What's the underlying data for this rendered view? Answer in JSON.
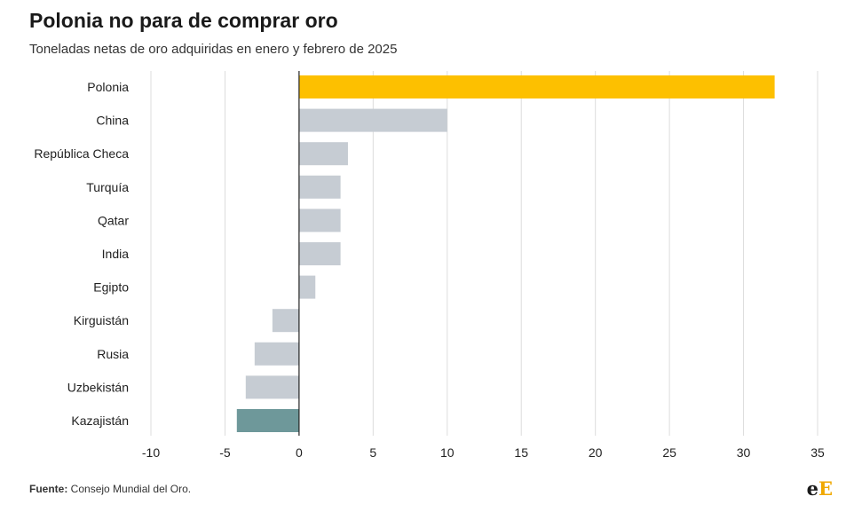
{
  "chart_data": {
    "type": "bar",
    "orientation": "horizontal",
    "title": "Polonia no para de comprar oro",
    "subtitle": "Toneladas netas de oro adquiridas en enero y febrero de 2025",
    "categories": [
      "Polonia",
      "China",
      "República Checa",
      "Turquía",
      "Qatar",
      "India",
      "Egipto",
      "Kirguistán",
      "Rusia",
      "Uzbekistán",
      "Kazajistán"
    ],
    "values": [
      32.1,
      10.0,
      3.3,
      2.8,
      2.8,
      2.8,
      1.1,
      -1.8,
      -3.0,
      -3.6,
      -4.2
    ],
    "bar_colors": [
      "#fdc000",
      "#c6ccd3",
      "#c6ccd3",
      "#c6ccd3",
      "#c6ccd3",
      "#c6ccd3",
      "#c6ccd3",
      "#c6ccd3",
      "#c6ccd3",
      "#c6ccd3",
      "#6e989a"
    ],
    "xlim": [
      -10,
      35
    ],
    "xticks": [
      -10,
      -5,
      0,
      5,
      10,
      15,
      20,
      25,
      30,
      35
    ],
    "grid": true,
    "legend": "none"
  },
  "footer": {
    "source_label": "Fuente:",
    "source_text": " Consejo Mundial del Oro."
  },
  "logo": {
    "lower": "e",
    "upper": "E"
  }
}
